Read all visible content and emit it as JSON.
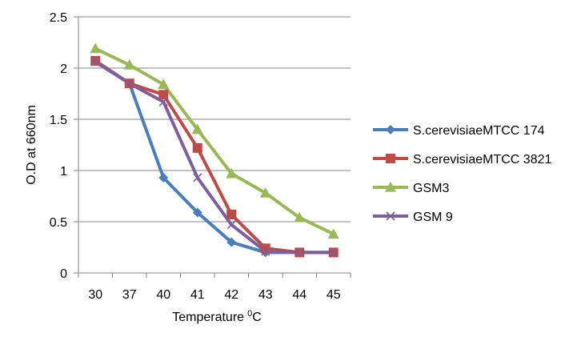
{
  "chart_data": {
    "type": "line",
    "title": "",
    "xlabel": "Temperature",
    "xlabel_superscript": "0",
    "xlabel_unit": "C",
    "ylabel": "O.D at 660nm",
    "categories": [
      "30",
      "37",
      "40",
      "41",
      "42",
      "43",
      "44",
      "45"
    ],
    "ylim": [
      0,
      2.5
    ],
    "yticks": [
      "0",
      "0.5",
      "1",
      "1.5",
      "2",
      "2.5"
    ],
    "grid": true,
    "legend_position": "right",
    "series": [
      {
        "name": "S.cerevisiaeMTCC 174",
        "color": "#4a7ebb",
        "marker": "diamond",
        "values": [
          2.07,
          1.85,
          0.93,
          0.59,
          0.3,
          0.2,
          0.2,
          0.2
        ]
      },
      {
        "name": "S.cerevisiaeMTCC 3821",
        "color": "#be4b48",
        "marker": "square",
        "values": [
          2.07,
          1.85,
          1.74,
          1.22,
          0.57,
          0.24,
          0.2,
          0.2
        ]
      },
      {
        "name": "GSM3",
        "color": "#98b954",
        "marker": "triangle",
        "values": [
          2.19,
          2.03,
          1.84,
          1.4,
          0.97,
          0.78,
          0.54,
          0.38
        ]
      },
      {
        "name": "GSM 9",
        "color": "#7d5fa0",
        "marker": "x",
        "values": [
          2.06,
          1.85,
          1.67,
          0.93,
          0.47,
          0.21,
          0.2,
          0.2
        ]
      }
    ]
  }
}
